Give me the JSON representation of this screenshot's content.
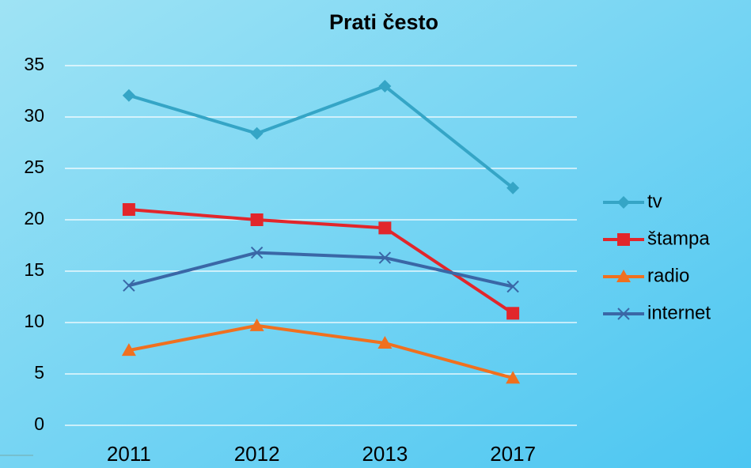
{
  "chart_data": {
    "type": "line",
    "title": "Prati često",
    "categories": [
      "2011",
      "2012",
      "2013",
      "2017"
    ],
    "series": [
      {
        "name": "tv",
        "color": "#35a5c6",
        "marker": "diamond",
        "values": [
          32.1,
          28.4,
          33.0,
          23.1
        ]
      },
      {
        "name": "štampa",
        "color": "#e2262b",
        "marker": "square",
        "values": [
          21.0,
          20.0,
          19.2,
          10.9
        ]
      },
      {
        "name": "radio",
        "color": "#f0701f",
        "marker": "triangle",
        "values": [
          7.3,
          9.7,
          8.0,
          4.6
        ]
      },
      {
        "name": "internet",
        "color": "#3a67a6",
        "marker": "x",
        "values": [
          13.6,
          16.8,
          16.3,
          13.5
        ]
      }
    ],
    "ylim": [
      0,
      35
    ],
    "yticks": [
      0,
      5,
      10,
      15,
      20,
      25,
      30,
      35
    ],
    "grid": true,
    "legend": "right"
  }
}
